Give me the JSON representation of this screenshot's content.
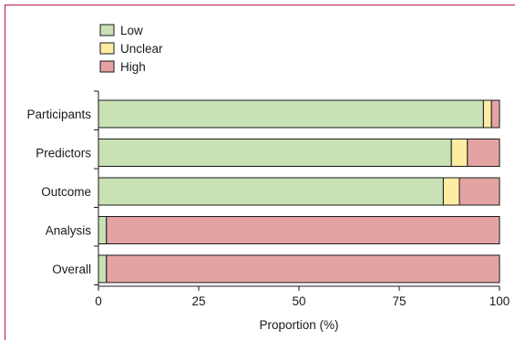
{
  "chart_data": {
    "type": "bar",
    "stacked": true,
    "orientation": "horizontal",
    "categories": [
      "Participants",
      "Predictors",
      "Outcome",
      "Analysis",
      "Overall"
    ],
    "series": [
      {
        "name": "Low",
        "color": "#c8e1b5",
        "values": [
          96,
          88,
          86,
          2,
          2
        ]
      },
      {
        "name": "Unclear",
        "color": "#fdeca2",
        "values": [
          2,
          4,
          4,
          0,
          0
        ]
      },
      {
        "name": "High",
        "color": "#e4a3a3",
        "values": [
          2,
          8,
          10,
          98,
          98
        ]
      }
    ],
    "xlabel": "Proportion (%)",
    "xticks": [
      0,
      25,
      50,
      75,
      100
    ],
    "xlim": [
      0,
      100
    ],
    "legend_position": "top-left",
    "grid": false
  }
}
